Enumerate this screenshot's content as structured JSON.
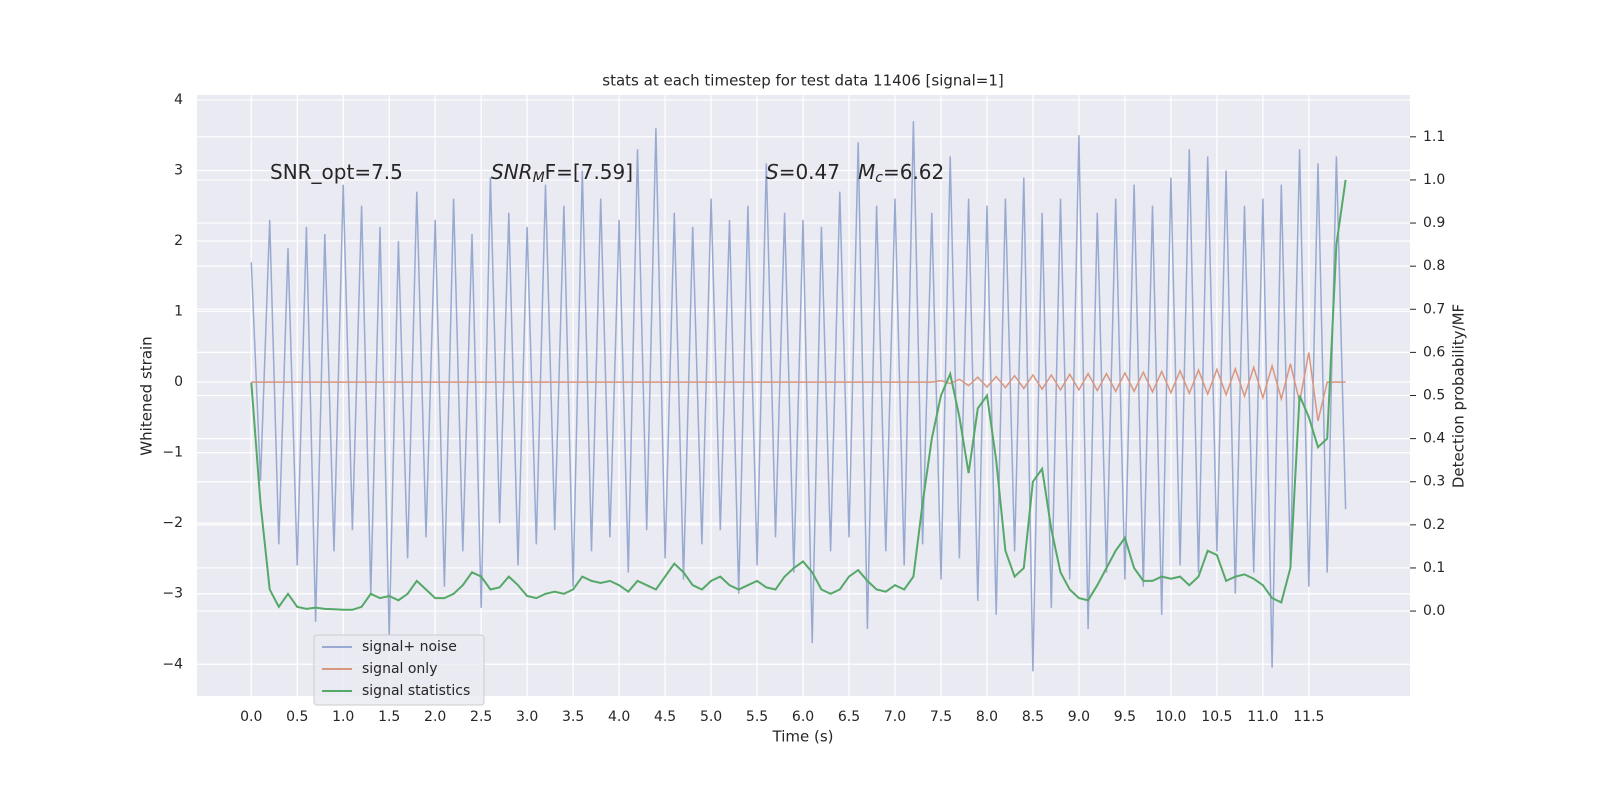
{
  "chart_data": {
    "type": "line",
    "title": "stats at each timestep for test data 11406 [signal=1]",
    "x_label": "Time (s)",
    "y_label": "Whitened strain",
    "y2_label": "Detection probability/MF",
    "annotations": [
      {
        "text": "SNR_opt=7.5"
      },
      {
        "italic": "SNR",
        "sub": "M",
        "text": "F=[7.59]"
      },
      {
        "italic": "S",
        "text": "=0.47"
      },
      {
        "italic": "M",
        "sub": "c",
        "text": "=6.62"
      }
    ],
    "xlim": [
      -0.59,
      12.6
    ],
    "ylim": [
      -4.45,
      4.07
    ],
    "y2lim": [
      -0.197,
      1.197
    ],
    "xticks": [
      {
        "value": 0,
        "label": "0.0"
      },
      0.5,
      {
        "value": 1,
        "label": "1.0"
      },
      1.5,
      {
        "value": 2,
        "label": "2.0"
      },
      2.5,
      {
        "value": 3,
        "label": "3.0"
      },
      3.5,
      {
        "value": 4,
        "label": "4.0"
      },
      4.5,
      {
        "value": 5,
        "label": "5.0"
      },
      5.5,
      {
        "value": 6,
        "label": "6.0"
      },
      6.5,
      {
        "value": 7,
        "label": "7.0"
      },
      7.5,
      {
        "value": 8,
        "label": "8.0"
      },
      8.5,
      {
        "value": 9,
        "label": "9.0"
      },
      9.5,
      {
        "value": 10,
        "label": "10.0"
      },
      10.5,
      {
        "value": 11,
        "label": "11.0"
      },
      11.5
    ],
    "yticks": [
      {
        "value": -4,
        "label": "−4"
      },
      {
        "value": -3,
        "label": "−3"
      },
      {
        "value": -2,
        "label": "−2"
      },
      {
        "value": -1,
        "label": "−1"
      },
      0,
      1,
      2,
      3,
      4
    ],
    "y2ticks": [
      {
        "value": 0,
        "label": "0.0"
      },
      0.1,
      0.2,
      0.3,
      0.4,
      0.5,
      0.6,
      0.7,
      0.8,
      0.9,
      {
        "value": 1,
        "label": "1.0"
      },
      1.1
    ],
    "grid": true,
    "legend": "lower left",
    "x": [
      0,
      0.1,
      0.2,
      0.3,
      0.4,
      0.5,
      0.6,
      0.7,
      0.8,
      0.9,
      1,
      1.1,
      1.2,
      1.3,
      1.4,
      1.5,
      1.6,
      1.7,
      1.8,
      1.9,
      2,
      2.1,
      2.2,
      2.3,
      2.4,
      2.5,
      2.6,
      2.7,
      2.8,
      2.9,
      3,
      3.1,
      3.2,
      3.3,
      3.4,
      3.5,
      3.6,
      3.7,
      3.8,
      3.9,
      4,
      4.1,
      4.2,
      4.3,
      4.4,
      4.5,
      4.6,
      4.7,
      4.8,
      4.9,
      5,
      5.1,
      5.2,
      5.3,
      5.4,
      5.5,
      5.6,
      5.7,
      5.8,
      5.9,
      6,
      6.1,
      6.2,
      6.3,
      6.4,
      6.5,
      6.6,
      6.7,
      6.8,
      6.9,
      7,
      7.1,
      7.2,
      7.3,
      7.4,
      7.5,
      7.6,
      7.7,
      7.8,
      7.9,
      8,
      8.1,
      8.2,
      8.3,
      8.4,
      8.5,
      8.6,
      8.7,
      8.8,
      8.9,
      9,
      9.1,
      9.2,
      9.3,
      9.4,
      9.5,
      9.6,
      9.7,
      9.8,
      9.9,
      10,
      10.1,
      10.2,
      10.3,
      10.4,
      10.5,
      10.6,
      10.7,
      10.8,
      10.9,
      11,
      11.1,
      11.2,
      11.3,
      11.4,
      11.5,
      11.6,
      11.7,
      11.8,
      11.9
    ],
    "series": [
      {
        "name": "signal+ noise",
        "color": "#99aad0",
        "values": [
          1.7,
          -1.4,
          2.3,
          -2.3,
          1.9,
          -2.6,
          2.2,
          -3.4,
          2.1,
          -2.4,
          2.8,
          -2.1,
          2.5,
          -3.0,
          2.2,
          -3.6,
          2.0,
          -2.5,
          2.7,
          -2.2,
          2.3,
          -2.9,
          2.6,
          -2.4,
          2.1,
          -3.2,
          2.9,
          -2.0,
          2.4,
          -2.6,
          2.2,
          -2.3,
          2.8,
          -2.1,
          2.5,
          -2.9,
          3.0,
          -2.4,
          2.6,
          -2.2,
          2.3,
          -2.7,
          3.3,
          -2.1,
          3.6,
          -2.5,
          2.4,
          -2.8,
          2.2,
          -2.3,
          2.6,
          -2.1,
          2.3,
          -3.0,
          2.5,
          -2.6,
          3.1,
          -2.2,
          2.4,
          -2.7,
          2.3,
          -3.7,
          2.2,
          -2.4,
          2.7,
          -2.2,
          3.4,
          -3.5,
          2.5,
          -2.4,
          2.6,
          -2.6,
          3.7,
          -2.3,
          2.4,
          -2.8,
          3.2,
          -2.5,
          2.6,
          -3.1,
          2.5,
          -3.3,
          2.6,
          -2.4,
          2.9,
          -4.1,
          2.4,
          -3.2,
          2.6,
          -2.8,
          3.5,
          -3.5,
          2.4,
          -2.7,
          2.6,
          -2.8,
          2.8,
          -2.9,
          2.5,
          -3.3,
          2.9,
          -2.6,
          3.3,
          -2.7,
          3.2,
          -2.4,
          3.0,
          -3.0,
          2.5,
          -2.7,
          2.6,
          -4.05,
          2.8,
          -2.6,
          3.3,
          -2.9,
          3.1,
          -2.7,
          3.2,
          -1.8
        ]
      },
      {
        "name": "signal only",
        "color": "#d9977f",
        "values": [
          0,
          0,
          0,
          0,
          0,
          0,
          0,
          0,
          0,
          0,
          0,
          0,
          0,
          0,
          0,
          0,
          0,
          0,
          0,
          0,
          0,
          0,
          0,
          0,
          0,
          0,
          0,
          0,
          0,
          0,
          0,
          0,
          0,
          0,
          0,
          0,
          0,
          0,
          0,
          0,
          0,
          0,
          0,
          0,
          0,
          0,
          0,
          0,
          0,
          0,
          0,
          0,
          0,
          0,
          0,
          0,
          0,
          0,
          0,
          0,
          0,
          0,
          0,
          0,
          0,
          0,
          0,
          0,
          0,
          0,
          0,
          0,
          0,
          0,
          0,
          0.02,
          -0.02,
          0.04,
          -0.05,
          0.07,
          -0.07,
          0.08,
          -0.08,
          0.09,
          -0.09,
          0.1,
          -0.1,
          0.1,
          -0.11,
          0.11,
          -0.11,
          0.12,
          -0.12,
          0.12,
          -0.13,
          0.13,
          -0.13,
          0.14,
          -0.14,
          0.15,
          -0.15,
          0.16,
          -0.16,
          0.17,
          -0.17,
          0.18,
          -0.18,
          0.19,
          -0.2,
          0.21,
          -0.22,
          0.23,
          -0.24,
          0.26,
          -0.28,
          0.42,
          -0.55,
          0,
          0,
          0
        ]
      },
      {
        "name": "signal statistics",
        "color": "#55a868",
        "axis": "y2",
        "values": [
          0.53,
          0.25,
          0.05,
          0.01,
          0.04,
          0.01,
          0.005,
          0.008,
          0.005,
          0.004,
          0.003,
          0.003,
          0.01,
          0.04,
          0.03,
          0.035,
          0.025,
          0.04,
          0.07,
          0.05,
          0.03,
          0.03,
          0.04,
          0.06,
          0.09,
          0.08,
          0.05,
          0.055,
          0.08,
          0.06,
          0.035,
          0.03,
          0.04,
          0.045,
          0.04,
          0.05,
          0.08,
          0.07,
          0.065,
          0.07,
          0.06,
          0.045,
          0.07,
          0.06,
          0.05,
          0.08,
          0.11,
          0.09,
          0.06,
          0.05,
          0.07,
          0.08,
          0.06,
          0.05,
          0.06,
          0.07,
          0.055,
          0.05,
          0.08,
          0.1,
          0.115,
          0.09,
          0.05,
          0.04,
          0.05,
          0.08,
          0.095,
          0.07,
          0.05,
          0.045,
          0.06,
          0.05,
          0.08,
          0.25,
          0.4,
          0.5,
          0.55,
          0.45,
          0.32,
          0.47,
          0.5,
          0.35,
          0.14,
          0.08,
          0.1,
          0.3,
          0.33,
          0.19,
          0.09,
          0.05,
          0.03,
          0.025,
          0.06,
          0.1,
          0.14,
          0.17,
          0.1,
          0.07,
          0.07,
          0.08,
          0.075,
          0.08,
          0.06,
          0.08,
          0.14,
          0.13,
          0.07,
          0.08,
          0.085,
          0.075,
          0.06,
          0.03,
          0.02,
          0.1,
          0.5,
          0.45,
          0.38,
          0.4,
          0.85,
          1.0
        ]
      }
    ]
  }
}
